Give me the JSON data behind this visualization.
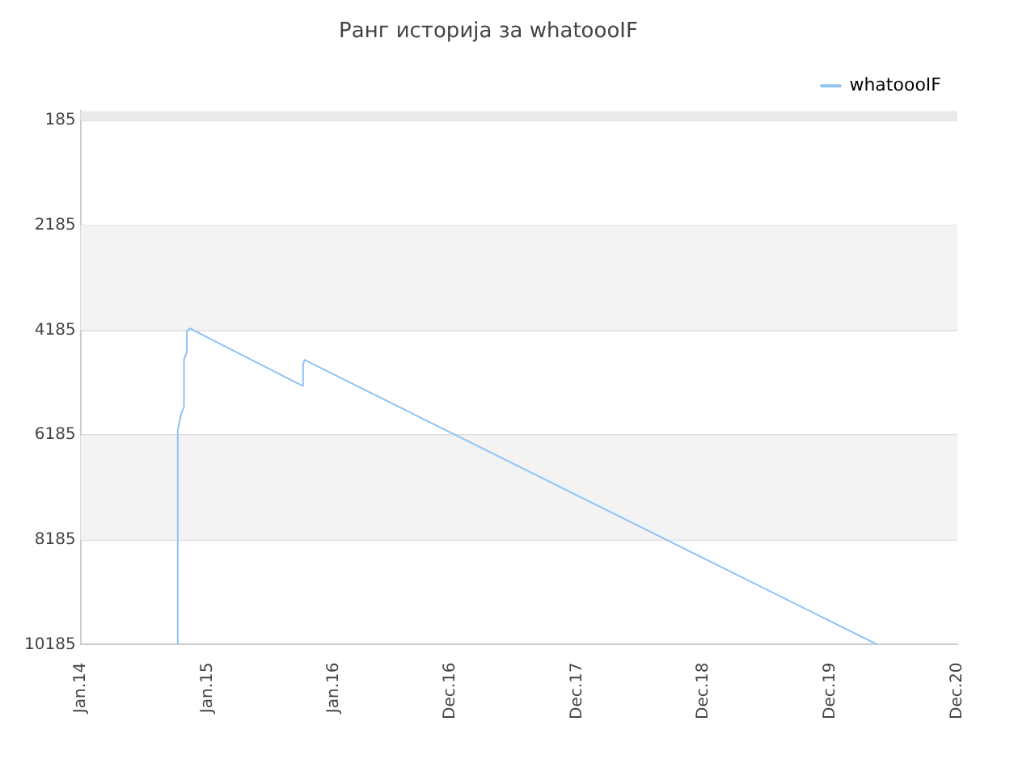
{
  "chart_data": {
    "type": "line",
    "title": "Ранг историја за whatoooIF",
    "x": [
      "2014-10-08",
      "2014-10-08",
      "2014-10-17",
      "2014-10-26",
      "2014-10-26",
      "2014-11-03",
      "2014-11-03",
      "2014-11-12",
      "2015-10-04",
      "2015-10-04",
      "2015-10-08",
      "2020-04-15"
    ],
    "series": [
      {
        "name": "whatoooIF",
        "color": "#90c3f3",
        "values": [
          10185,
          6100,
          5800,
          5650,
          4750,
          4600,
          4200,
          4150,
          5250,
          4850,
          4750,
          10185
        ]
      }
    ],
    "bands": [
      {
        "axis": "y",
        "from": 0,
        "to": 185,
        "color": "#ebebeb"
      }
    ],
    "xlim": [
      "2014-01-01",
      "2020-12-01"
    ],
    "xticks": [
      {
        "value": "2014-01-01",
        "label": "Jan.14"
      },
      {
        "value": "2015-01-01",
        "label": "Jan.15"
      },
      {
        "value": "2016-01-01",
        "label": "Jan.16"
      },
      {
        "value": "2016-12-01",
        "label": "Dec.16"
      },
      {
        "value": "2017-12-01",
        "label": "Dec.17"
      },
      {
        "value": "2018-12-01",
        "label": "Dec.18"
      },
      {
        "value": "2019-12-01",
        "label": "Dec.19"
      },
      {
        "value": "2020-12-01",
        "label": "Dec.20"
      }
    ],
    "ylim": [
      10185,
      0
    ],
    "yticks": [
      185,
      2185,
      4185,
      6185,
      8185,
      10185
    ],
    "grid": "y",
    "legend": "top right",
    "marker": "none",
    "line_style": "solid"
  }
}
